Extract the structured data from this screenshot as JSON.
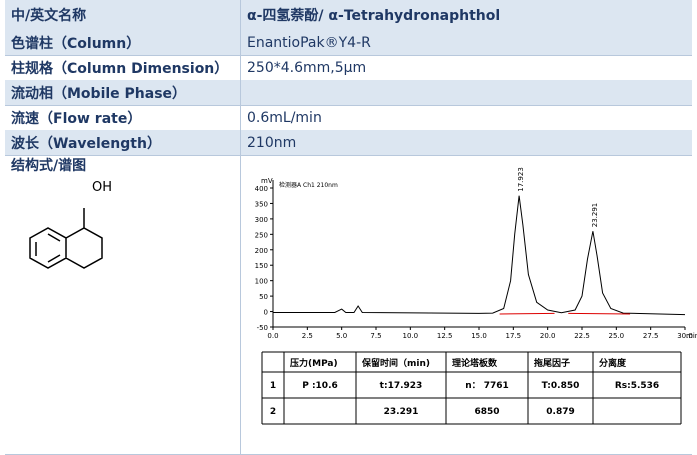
{
  "rows": [
    {
      "label": "中/英文名称",
      "value": "α-四氢萘酚/  α-Tetrahydronaphthol"
    },
    {
      "label": "色谱柱（Column）",
      "value": "EnantioPak®Y4-R"
    },
    {
      "label": "柱规格（Column Dimension）",
      "value": "250*4.6mm,5µm"
    },
    {
      "label": "流动相（Mobile Phase）",
      "value": null
    },
    {
      "label": "流速（Flow rate）",
      "value": "0.6mL/min"
    },
    {
      "label": "波长（Wavelength）",
      "value": "210nm"
    },
    {
      "label": "结构式/谱图",
      "value": null
    }
  ],
  "structure": {
    "label": "OH"
  },
  "chromatogram": {
    "detector": "检测器A Ch1 210nm",
    "y_unit": "mV",
    "x_unit": "min",
    "xlim": [
      0,
      30
    ],
    "ylim": [
      -50,
      400
    ],
    "xticks": [
      {
        "value": 0,
        "label": "0.0"
      },
      {
        "value": 2.5,
        "label": "2.5"
      },
      {
        "value": 5,
        "label": "5.0"
      },
      {
        "value": 7.5,
        "label": "7.5"
      },
      {
        "value": 10,
        "label": "10.0"
      },
      {
        "value": 12.5,
        "label": "12.5"
      },
      {
        "value": 15,
        "label": "15.0"
      },
      {
        "value": 17.5,
        "label": "17.5"
      },
      {
        "value": 20,
        "label": "20.0"
      },
      {
        "value": 22.5,
        "label": "22.5"
      },
      {
        "value": 25,
        "label": "25.0"
      },
      {
        "value": 27.5,
        "label": "27.5"
      },
      {
        "value": 30,
        "label": "30.0"
      }
    ],
    "yticks": [
      -50,
      0,
      50,
      100,
      150,
      200,
      250,
      300,
      350,
      400
    ],
    "x": [
      0,
      4.5,
      5,
      5.3,
      5.9,
      6.2,
      6.5,
      15,
      16,
      16.8,
      17.3,
      17.6,
      17.923,
      18.2,
      18.6,
      19.2,
      20,
      21,
      22,
      22.5,
      22.9,
      23.291,
      23.6,
      24,
      24.6,
      25.5,
      30
    ],
    "y": [
      -3,
      -3,
      8,
      -3,
      -3,
      18,
      -3,
      -6,
      -5,
      10,
      100,
      250,
      375,
      280,
      120,
      30,
      5,
      -4,
      5,
      50,
      170,
      260,
      180,
      60,
      10,
      -5,
      -10
    ],
    "peak_labels": [
      {
        "x": 17.923,
        "y": 375,
        "label": "17.923"
      },
      {
        "x": 23.291,
        "y": 260,
        "label": "23.291"
      }
    ]
  },
  "results": {
    "header": [
      "压力(MPa)",
      "保留时间（min)",
      "理论塔板数",
      "拖尾因子",
      "分离度"
    ],
    "rows": [
      [
        "1",
        "P :10.6",
        "t:17.923",
        "n： 7761",
        "T:0.850",
        "Rs:5.536"
      ],
      [
        "2",
        null,
        "23.291",
        "6850",
        "0.879",
        null
      ]
    ]
  }
}
